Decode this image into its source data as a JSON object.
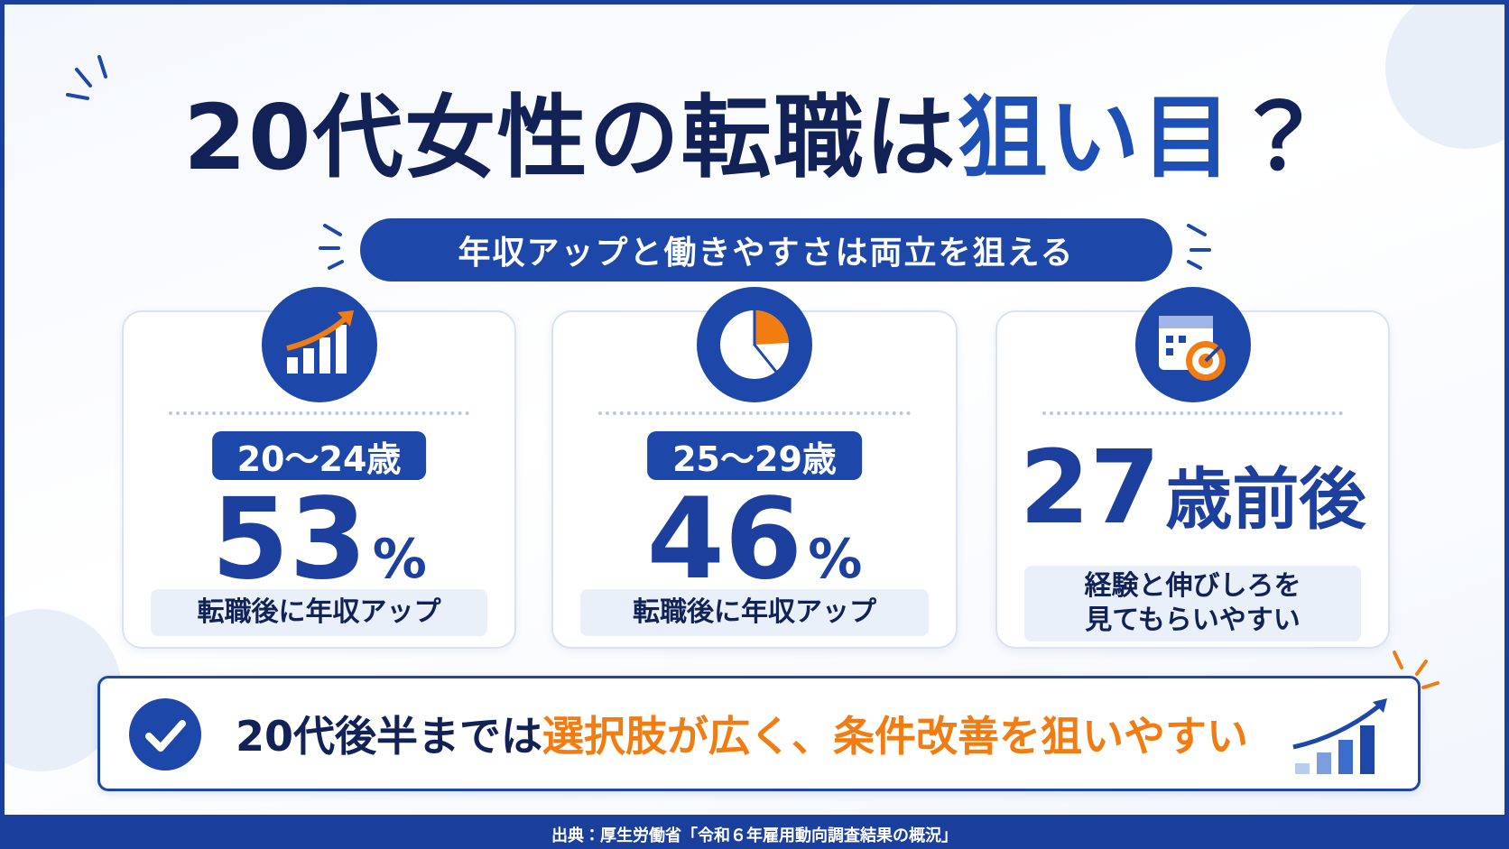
{
  "header": {
    "title": {
      "lead": "20代女性の転職は",
      "accent": "狙い目",
      "end": "？"
    },
    "subtitle": "年収アップと働きやすさは両立を狙える"
  },
  "cards": [
    {
      "label": "20〜24歳",
      "value": 53,
      "unit": "%",
      "description": "転職後に年収アップ"
    },
    {
      "label": "25〜29歳",
      "value": 46,
      "unit": "%",
      "description": "転職後に年収アップ"
    },
    {
      "value": 27,
      "unit": "歳前後",
      "description": [
        "経験と伸びしろを",
        "見てもらいやすい"
      ]
    }
  ],
  "banner": {
    "lead": "20代後半までは",
    "accent": "選択肢が広く、条件改善を狙いやすい"
  },
  "source": "出典：厚生労働省「令和６年雇用動向調査結果の概況」"
}
